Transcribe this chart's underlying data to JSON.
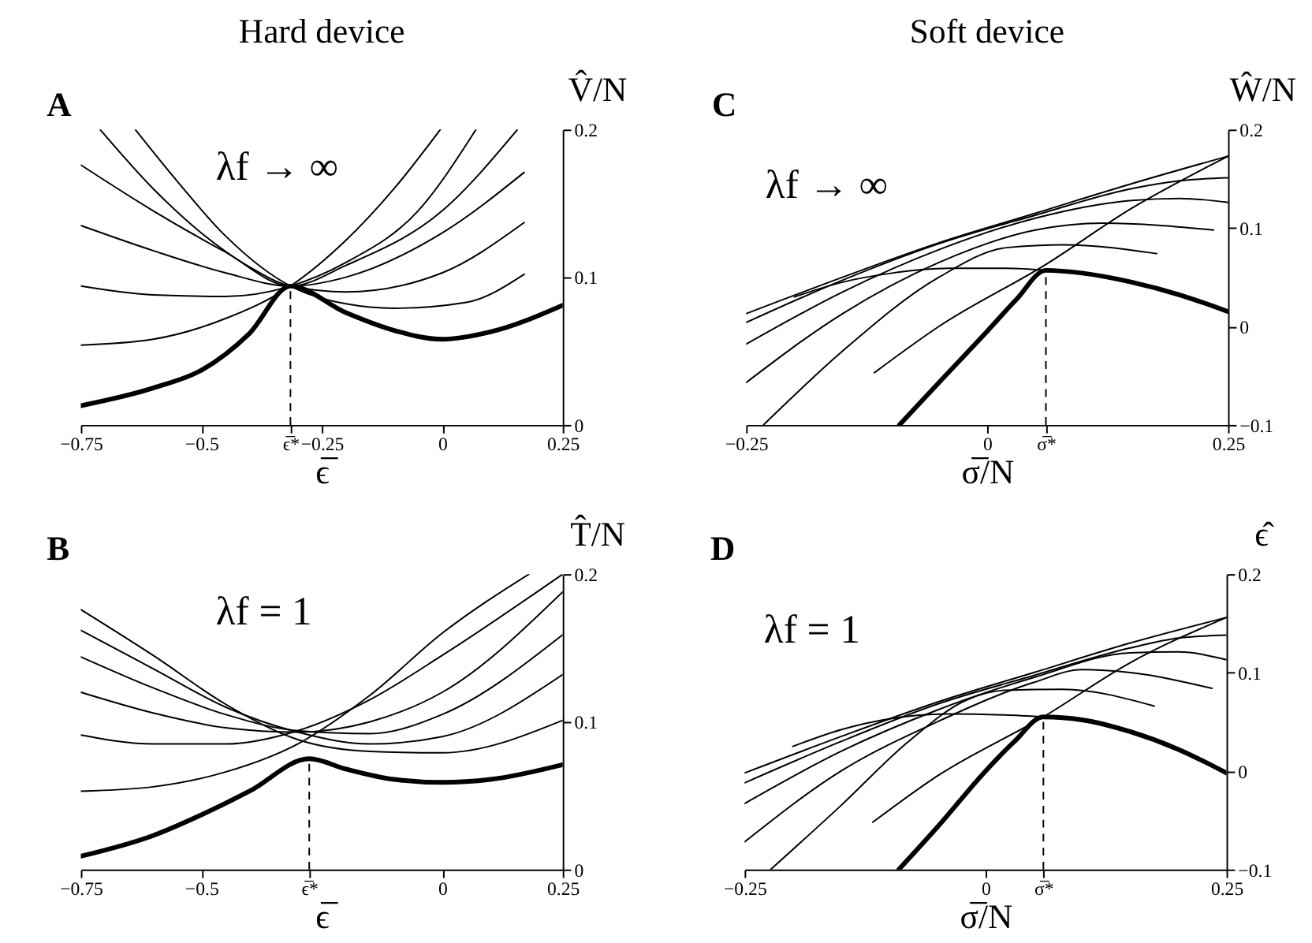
{
  "chart_data": [
    {
      "type": "line",
      "title": "Hard device",
      "xlabel": "ϵ̅",
      "ylabel": "V̂/N",
      "annotations": [
        "A",
        "λf → ∞"
      ],
      "xlim": [
        -0.75,
        0.25
      ],
      "ylim": [
        0,
        0.2
      ],
      "xticks": [
        -0.75,
        -0.5,
        {
          "value": -0.315,
          "label": "ϵ̅*"
        },
        -0.25,
        0,
        0.25
      ],
      "yticks": [
        0,
        0.1,
        0.2
      ],
      "ref_lines": [
        {
          "axis": "x",
          "value": -0.315,
          "line_style": "dashed",
          "color": "#000000"
        }
      ],
      "series": [
        {
          "color": "#000000",
          "x": [
            -0.75,
            -0.6,
            -0.5,
            -0.4,
            -0.315,
            -0.2,
            -0.1,
            0,
            0.1,
            0.25
          ],
          "values": [
            0.013,
            0.025,
            0.037,
            0.062,
            0.094,
            0.076,
            0.064,
            0.058,
            0.063,
            0.081
          ]
        },
        {
          "color": "#000000",
          "x": [
            -0.75,
            -0.6,
            -0.45,
            -0.315,
            -0.2,
            -0.1,
            -0.004
          ],
          "values": [
            0.054,
            0.058,
            0.072,
            0.094,
            0.125,
            0.16,
            0.2
          ]
        },
        {
          "color": "#000000",
          "x": [
            -0.75,
            -0.6,
            -0.45,
            -0.315,
            -0.2,
            -0.05,
            0.07
          ],
          "values": [
            0.094,
            0.088,
            0.087,
            0.094,
            0.11,
            0.145,
            0.2
          ]
        },
        {
          "color": "#000000",
          "x": [
            -0.75,
            -0.6,
            -0.45,
            -0.315,
            -0.2,
            0,
            0.156
          ],
          "values": [
            0.135,
            0.118,
            0.103,
            0.094,
            0.108,
            0.145,
            0.2
          ]
        },
        {
          "color": "#000000",
          "x": [
            -0.75,
            -0.6,
            -0.45,
            -0.315,
            -0.2,
            0,
            0.17
          ],
          "values": [
            0.176,
            0.145,
            0.117,
            0.094,
            0.1,
            0.13,
            0.171
          ]
        },
        {
          "color": "#000000",
          "x": [
            -0.71,
            -0.6,
            -0.5,
            -0.4,
            -0.315,
            -0.2,
            0,
            0.17
          ],
          "values": [
            0.2,
            0.16,
            0.13,
            0.107,
            0.094,
            0.09,
            0.103,
            0.137
          ]
        },
        {
          "color": "#000000",
          "x": [
            -0.637,
            -0.55,
            -0.45,
            -0.315,
            -0.2,
            -0.1,
            0.05,
            0.17
          ],
          "values": [
            0.2,
            0.165,
            0.128,
            0.094,
            0.082,
            0.079,
            0.083,
            0.102
          ]
        }
      ]
    },
    {
      "type": "line",
      "title": "Soft device",
      "xlabel": "σ̅/N",
      "ylabel": "Ŵ/N",
      "annotations": [
        "C",
        "λf → ∞"
      ],
      "xlim": [
        -0.25,
        0.25
      ],
      "ylim": [
        -0.1,
        0.2
      ],
      "xticks": [
        -0.25,
        0,
        {
          "value": 0.061,
          "label": "σ̅*"
        },
        0.25
      ],
      "yticks": [
        -0.1,
        0,
        0.1,
        0.2
      ],
      "ref_lines": [
        {
          "axis": "x",
          "value": 0.061,
          "line_style": "dashed",
          "color": "#000000"
        }
      ],
      "series": [
        {
          "color": "#000000",
          "x": [
            -0.091,
            -0.05,
            0,
            0.03,
            0.061,
            0.1,
            0.15,
            0.2,
            0.25
          ],
          "values": [
            -0.1,
            -0.057,
            -0.005,
            0.027,
            0.057,
            0.054,
            0.045,
            0.032,
            0.015
          ]
        },
        {
          "color": "#000000",
          "x": [
            -0.25,
            -0.15,
            -0.05,
            0.05,
            0.15,
            0.25
          ],
          "values": [
            0.013,
            0.05,
            0.085,
            0.115,
            0.145,
            0.173
          ]
        },
        {
          "color": "#000000",
          "x": [
            -0.25,
            -0.15,
            -0.05,
            0.05,
            0.15,
            0.2,
            0.25
          ],
          "values": [
            0.004,
            0.047,
            0.084,
            0.113,
            0.14,
            0.148,
            0.151
          ]
        },
        {
          "color": "#000000",
          "x": [
            -0.25,
            -0.15,
            -0.05,
            0.05,
            0.15,
            0.2,
            0.25
          ],
          "values": [
            -0.018,
            0.035,
            0.078,
            0.11,
            0.128,
            0.13,
            0.126
          ]
        },
        {
          "color": "#000000",
          "x": [
            -0.25,
            -0.15,
            -0.05,
            0.05,
            0.12,
            0.235
          ],
          "values": [
            -0.057,
            0.013,
            0.065,
            0.098,
            0.105,
            0.098
          ]
        },
        {
          "color": "#000000",
          "x": [
            -0.232,
            -0.15,
            -0.05,
            0.02,
            0.08,
            0.176
          ],
          "values": [
            -0.1,
            -0.025,
            0.05,
            0.08,
            0.083,
            0.074
          ]
        },
        {
          "color": "#000000",
          "x": [
            -0.117,
            -0.05,
            0.061,
            0.15,
            0.25
          ],
          "values": [
            -0.047,
            0.0,
            0.063,
            0.12,
            0.173
          ]
        },
        {
          "color": "#000000",
          "x": [
            -0.2,
            -0.15,
            -0.1,
            -0.04,
            0.02,
            0.061
          ],
          "values": [
            0.03,
            0.045,
            0.054,
            0.059,
            0.059,
            0.057
          ]
        }
      ]
    },
    {
      "type": "line",
      "xlabel": "ϵ̅",
      "ylabel": "T̂/N",
      "annotations": [
        "B",
        "λf = 1"
      ],
      "xlim": [
        -0.75,
        0.25
      ],
      "ylim": [
        0,
        0.2
      ],
      "xticks": [
        -0.75,
        -0.5,
        {
          "value": -0.276,
          "label": "ϵ̅*"
        },
        0,
        0.25
      ],
      "yticks": [
        0,
        0.1,
        0.2
      ],
      "ref_lines": [
        {
          "axis": "x",
          "value": -0.276,
          "line_style": "dashed",
          "color": "#000000"
        }
      ],
      "series": [
        {
          "color": "#000000",
          "x": [
            -0.75,
            -0.6,
            -0.5,
            -0.4,
            -0.276,
            -0.2,
            -0.1,
            0,
            0.1,
            0.25
          ],
          "values": [
            0.009,
            0.023,
            0.037,
            0.053,
            0.075,
            0.068,
            0.061,
            0.059,
            0.061,
            0.071
          ]
        },
        {
          "color": "#000000",
          "x": [
            -0.75,
            -0.6,
            -0.45,
            -0.3,
            -0.15,
            0,
            0.18
          ],
          "values": [
            0.053,
            0.056,
            0.066,
            0.085,
            0.118,
            0.16,
            0.2
          ]
        },
        {
          "color": "#000000",
          "x": [
            -0.75,
            -0.6,
            -0.45,
            -0.3,
            -0.15,
            0,
            0.25
          ],
          "values": [
            0.091,
            0.085,
            0.085,
            0.094,
            0.115,
            0.145,
            0.2
          ]
        },
        {
          "color": "#000000",
          "x": [
            -0.75,
            -0.6,
            -0.45,
            -0.3,
            -0.15,
            0,
            0.25
          ],
          "values": [
            0.12,
            0.106,
            0.096,
            0.093,
            0.1,
            0.12,
            0.188
          ]
        },
        {
          "color": "#000000",
          "x": [
            -0.75,
            -0.6,
            -0.45,
            -0.3,
            -0.15,
            0,
            0.25
          ],
          "values": [
            0.144,
            0.123,
            0.105,
            0.094,
            0.092,
            0.105,
            0.159
          ]
        },
        {
          "color": "#000000",
          "x": [
            -0.75,
            -0.6,
            -0.45,
            -0.3,
            -0.15,
            0,
            0.25
          ],
          "values": [
            0.162,
            0.136,
            0.11,
            0.093,
            0.085,
            0.09,
            0.132
          ]
        },
        {
          "color": "#000000",
          "x": [
            -0.75,
            -0.6,
            -0.45,
            -0.3,
            -0.15,
            0,
            0.25
          ],
          "values": [
            0.176,
            0.145,
            0.112,
            0.088,
            0.08,
            0.079,
            0.101
          ]
        }
      ]
    },
    {
      "type": "line",
      "xlabel": "σ̅/N",
      "ylabel": "ϵ̂",
      "annotations": [
        "D",
        "λf = 1"
      ],
      "xlim": [
        -0.25,
        0.25
      ],
      "ylim": [
        -0.1,
        0.2
      ],
      "xticks": [
        -0.25,
        0,
        {
          "value": 0.06,
          "label": "σ̅*"
        },
        0.25
      ],
      "yticks": [
        -0.1,
        0,
        0.1,
        0.2
      ],
      "ref_lines": [
        {
          "axis": "x",
          "value": 0.06,
          "line_style": "dashed",
          "color": "#000000"
        }
      ],
      "series": [
        {
          "color": "#000000",
          "x": [
            -0.09,
            -0.05,
            0,
            0.03,
            0.06,
            0.1,
            0.15,
            0.2,
            0.25
          ],
          "values": [
            -0.1,
            -0.057,
            0.0,
            0.03,
            0.055,
            0.052,
            0.04,
            0.022,
            -0.002
          ]
        },
        {
          "color": "#000000",
          "x": [
            -0.25,
            -0.15,
            -0.05,
            0.05,
            0.15,
            0.25
          ],
          "values": [
            -0.002,
            0.035,
            0.07,
            0.1,
            0.13,
            0.156
          ]
        },
        {
          "color": "#000000",
          "x": [
            -0.25,
            -0.15,
            -0.05,
            0.05,
            0.15,
            0.2,
            0.25
          ],
          "values": [
            -0.012,
            0.03,
            0.068,
            0.097,
            0.125,
            0.135,
            0.138
          ]
        },
        {
          "color": "#000000",
          "x": [
            -0.25,
            -0.15,
            -0.05,
            0.05,
            0.15,
            0.2,
            0.25
          ],
          "values": [
            -0.033,
            0.02,
            0.062,
            0.095,
            0.12,
            0.121,
            0.113
          ]
        },
        {
          "color": "#000000",
          "x": [
            -0.25,
            -0.15,
            -0.05,
            0.05,
            0.1,
            0.15,
            0.235
          ],
          "values": [
            -0.072,
            0.0,
            0.05,
            0.09,
            0.103,
            0.1,
            0.084
          ]
        },
        {
          "color": "#000000",
          "x": [
            -0.223,
            -0.15,
            -0.08,
            -0.02,
            0.02,
            0.08,
            0.175
          ],
          "values": [
            -0.1,
            -0.035,
            0.03,
            0.072,
            0.082,
            0.083,
            0.066
          ]
        },
        {
          "color": "#000000",
          "x": [
            -0.117,
            -0.05,
            0.06,
            0.15,
            0.25
          ],
          "values": [
            -0.052,
            -0.005,
            0.055,
            0.11,
            0.156
          ]
        },
        {
          "color": "#000000",
          "x": [
            -0.2,
            -0.15,
            -0.1,
            -0.04,
            0.02,
            0.06
          ],
          "values": [
            0.025,
            0.042,
            0.053,
            0.058,
            0.057,
            0.055
          ]
        }
      ]
    }
  ]
}
